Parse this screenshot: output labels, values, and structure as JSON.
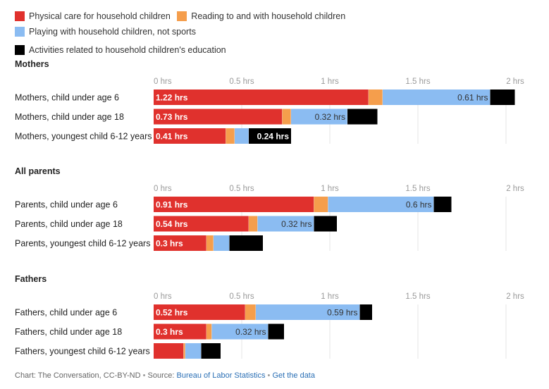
{
  "colors": {
    "physical_care": "#e0312d",
    "reading": "#f59e4c",
    "playing": "#8bbcf2",
    "education": "#000000"
  },
  "legend": [
    {
      "key": "physical_care",
      "label": "Physical care for household children"
    },
    {
      "key": "reading",
      "label": "Reading to and with household children"
    },
    {
      "key": "playing",
      "label": "Playing with household children, not sports"
    },
    {
      "key": "education",
      "label": "Activities related to household children's education"
    }
  ],
  "footer": {
    "credit": "Chart: The Conversation, CC-BY-ND",
    "separator": "•",
    "source_prefix": "Source:",
    "source_link": "Bureau of Labor Statistics",
    "data_link": "Get the data"
  },
  "chart_data": {
    "type": "bar",
    "orientation": "horizontal",
    "stacked": true,
    "unit": "hrs",
    "xlim": [
      0,
      2
    ],
    "ticks": [
      0,
      0.5,
      1,
      1.5,
      2
    ],
    "tick_labels": [
      "0 hrs",
      "0.5 hrs",
      "1 hrs",
      "1.5 hrs",
      "2 hrs"
    ],
    "series_keys": [
      "physical_care",
      "reading",
      "playing",
      "education"
    ],
    "series_names": [
      "Physical care for household children",
      "Reading to and with household children",
      "Playing with household children, not sports",
      "Activities related to household children's education"
    ],
    "groups": [
      {
        "title": "Mothers",
        "rows": [
          {
            "label": "Mothers, child under age 6",
            "values": [
              1.22,
              0.08,
              0.61,
              0.14
            ],
            "labels": [
              "1.22 hrs",
              "",
              "0.61 hrs",
              ""
            ]
          },
          {
            "label": "Mothers, child under age 18",
            "values": [
              0.73,
              0.05,
              0.32,
              0.17
            ],
            "labels": [
              "0.73 hrs",
              "",
              "0.32 hrs",
              ""
            ]
          },
          {
            "label": "Mothers, youngest child 6-12 years",
            "values": [
              0.41,
              0.05,
              0.08,
              0.24
            ],
            "labels": [
              "0.41 hrs",
              "",
              "",
              "0.24 hrs"
            ]
          }
        ]
      },
      {
        "title": "All parents",
        "rows": [
          {
            "label": "Parents, child under age 6",
            "values": [
              0.91,
              0.08,
              0.6,
              0.1
            ],
            "labels": [
              "0.91 hrs",
              "",
              "0.6 hrs",
              ""
            ]
          },
          {
            "label": "Parents, child under age 18",
            "values": [
              0.54,
              0.05,
              0.32,
              0.13
            ],
            "labels": [
              "0.54 hrs",
              "",
              "0.32 hrs",
              ""
            ]
          },
          {
            "label": "Parents, youngest child 6-12 years",
            "values": [
              0.3,
              0.04,
              0.09,
              0.19
            ],
            "labels": [
              "0.3 hrs",
              "",
              "",
              ""
            ]
          }
        ]
      },
      {
        "title": "Fathers",
        "rows": [
          {
            "label": "Fathers, child under age 6",
            "values": [
              0.52,
              0.06,
              0.59,
              0.07
            ],
            "labels": [
              "0.52 hrs",
              "",
              "0.59 hrs",
              ""
            ]
          },
          {
            "label": "Fathers, child under age 18",
            "values": [
              0.3,
              0.03,
              0.32,
              0.09
            ],
            "labels": [
              "0.3 hrs",
              "",
              "0.32 hrs",
              ""
            ]
          },
          {
            "label": "Fathers, youngest child 6-12 years",
            "values": [
              0.17,
              0.01,
              0.09,
              0.11
            ],
            "labels": [
              "",
              "",
              "",
              ""
            ]
          }
        ]
      }
    ]
  }
}
